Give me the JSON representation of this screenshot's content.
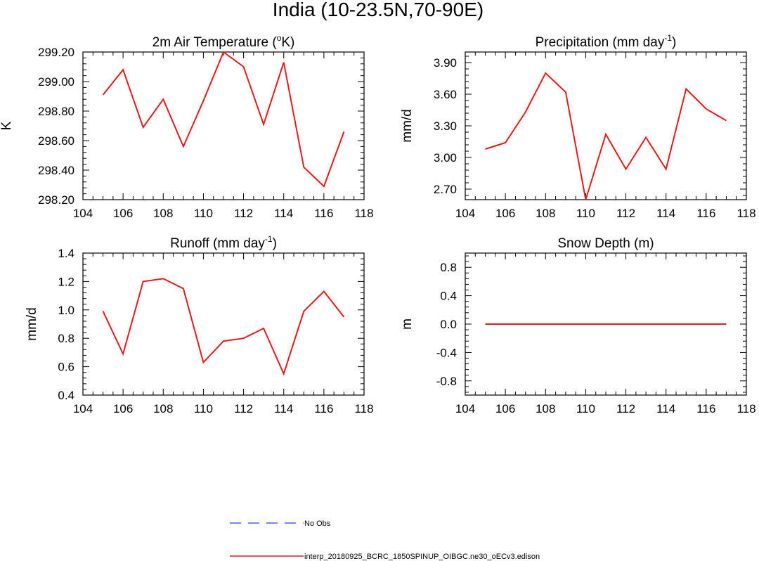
{
  "figure": {
    "title": "India (10-23.5N,70-90E)"
  },
  "legend": [
    {
      "label": "No Obs",
      "color": "#4a5cff",
      "dash": true
    },
    {
      "label": "interp_20180925_BCRC_1850SPINUP_OIBGC.ne30_oECv3.edison",
      "color": "#e41a1c",
      "dash": false
    }
  ],
  "chart_data": [
    {
      "type": "line",
      "title_main": "2m Air Temperature (",
      "title_sup": "o",
      "title_tail": "K)",
      "ylabel": "K",
      "xlim": [
        104,
        118
      ],
      "x_ticks": [
        104,
        106,
        108,
        110,
        112,
        114,
        116,
        118
      ],
      "ylim": [
        298.2,
        299.2
      ],
      "y_ticks": [
        298.2,
        298.4,
        298.6,
        298.8,
        299.0,
        299.2
      ],
      "y_tick_labels": [
        "298.20",
        "298.40",
        "298.60",
        "298.80",
        "299.00",
        "299.20"
      ],
      "series": [
        {
          "color": "#e41a1c",
          "x": [
            105,
            106,
            107,
            108,
            109,
            110,
            111,
            112,
            113,
            114,
            115,
            116,
            117
          ],
          "y": [
            298.91,
            299.08,
            298.69,
            298.88,
            298.56,
            298.87,
            299.2,
            299.1,
            298.71,
            299.13,
            298.42,
            298.29,
            298.66
          ]
        }
      ]
    },
    {
      "type": "line",
      "title_main": "Precipitation (mm day",
      "title_sup": "-1",
      "title_tail": ")",
      "ylabel": "mm/d",
      "xlim": [
        104,
        118
      ],
      "x_ticks": [
        104,
        106,
        108,
        110,
        112,
        114,
        116,
        118
      ],
      "ylim": [
        2.6,
        4.0
      ],
      "y_ticks": [
        2.7,
        3.0,
        3.3,
        3.6,
        3.9
      ],
      "y_tick_labels": [
        "2.70",
        "3.00",
        "3.30",
        "3.60",
        "3.90"
      ],
      "series": [
        {
          "color": "#e41a1c",
          "x": [
            105,
            106,
            107,
            108,
            109,
            110,
            111,
            112,
            113,
            114,
            115,
            116,
            117
          ],
          "y": [
            3.08,
            3.14,
            3.43,
            3.8,
            3.62,
            2.6,
            3.22,
            2.89,
            3.19,
            2.89,
            3.65,
            3.46,
            3.35
          ]
        }
      ]
    },
    {
      "type": "line",
      "title_main": "Runoff (mm day",
      "title_sup": "-1",
      "title_tail": ")",
      "ylabel": "mm/d",
      "xlim": [
        104,
        118
      ],
      "x_ticks": [
        104,
        106,
        108,
        110,
        112,
        114,
        116,
        118
      ],
      "ylim": [
        0.4,
        1.4
      ],
      "y_ticks": [
        0.4,
        0.6,
        0.8,
        1.0,
        1.2,
        1.4
      ],
      "y_tick_labels": [
        "0.4",
        "0.6",
        "0.8",
        "1.0",
        "1.2",
        "1.4"
      ],
      "series": [
        {
          "color": "#e41a1c",
          "x": [
            105,
            106,
            107,
            108,
            109,
            110,
            111,
            112,
            113,
            114,
            115,
            116,
            117
          ],
          "y": [
            0.99,
            0.69,
            1.2,
            1.22,
            1.15,
            0.63,
            0.78,
            0.8,
            0.87,
            0.55,
            0.99,
            1.13,
            0.95
          ]
        }
      ]
    },
    {
      "type": "line",
      "title_main": "Snow Depth (m)",
      "title_sup": "",
      "title_tail": "",
      "ylabel": "m",
      "xlim": [
        104,
        118
      ],
      "x_ticks": [
        104,
        106,
        108,
        110,
        112,
        114,
        116,
        118
      ],
      "ylim": [
        -1.0,
        1.0
      ],
      "y_ticks": [
        -0.8,
        -0.4,
        0.0,
        0.4,
        0.8
      ],
      "y_tick_labels": [
        "-0.8",
        "-0.4",
        "0.0",
        "0.4",
        "0.8"
      ],
      "series": [
        {
          "color": "#e41a1c",
          "x": [
            105,
            106,
            107,
            108,
            109,
            110,
            111,
            112,
            113,
            114,
            115,
            116,
            117
          ],
          "y": [
            0,
            0,
            0,
            0,
            0,
            0,
            0,
            0,
            0,
            0,
            0,
            0,
            0
          ]
        }
      ]
    }
  ]
}
